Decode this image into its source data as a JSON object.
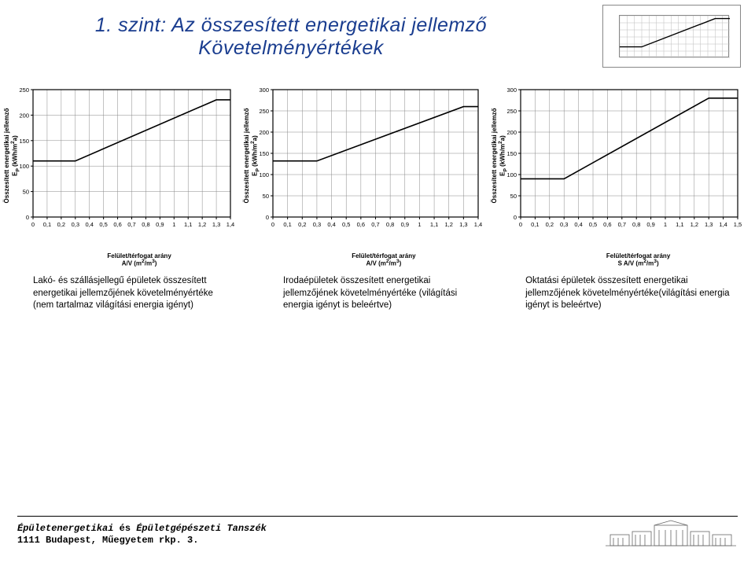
{
  "title": {
    "line1": "1. szint: Az összesített energetikai jellemző",
    "line2": "Követelményértékek"
  },
  "thumb": {
    "type": "line",
    "xlim": [
      0,
      1.5
    ],
    "ylim": [
      0,
      300
    ],
    "line": [
      [
        0,
        80
      ],
      [
        0.3,
        80
      ],
      [
        1.3,
        280
      ],
      [
        1.5,
        280
      ]
    ],
    "grid_xticks": 15,
    "background": "#ffffff",
    "line_color": "#000000",
    "grid_color": "#bdbdbd"
  },
  "charts": [
    {
      "type": "line",
      "ylabel": "Összesített energetikai jellemző\nE_P (kWh/m²a)",
      "xlabel1": "Felület/térfogat arány",
      "xlabel2": "A/V (m²/m³)",
      "xlim": [
        0,
        1.4
      ],
      "ylim": [
        0,
        250
      ],
      "xticks": [
        0,
        0.1,
        0.2,
        0.3,
        0.4,
        0.5,
        0.6,
        0.7,
        0.8,
        0.9,
        1,
        1.1,
        1.2,
        1.3,
        1.4
      ],
      "yticks": [
        0,
        50,
        100,
        150,
        200,
        250
      ],
      "xtick_labels": [
        "0",
        "0,1",
        "0,2",
        "0,3",
        "0,4",
        "0,5",
        "0,6",
        "0,7",
        "0,8",
        "0,9",
        "1",
        "1,1",
        "1,2",
        "1,3",
        "1,4"
      ],
      "ytick_labels": [
        "0",
        "50",
        "100",
        "150",
        "200",
        "250"
      ],
      "line": [
        [
          0,
          110
        ],
        [
          0.3,
          110
        ],
        [
          1.3,
          230
        ],
        [
          1.4,
          230
        ]
      ],
      "line_color": "#000000",
      "grid_color": "#888888",
      "background": "#ffffff",
      "line_width": 1.6
    },
    {
      "type": "line",
      "ylabel": "Összesített energetikai jellemző\nE_P (kWh/m²a)",
      "xlabel1": "Felület/térfogat arány",
      "xlabel2": "A/V (m²/m³)",
      "xlim": [
        0,
        1.4
      ],
      "ylim": [
        0,
        300
      ],
      "xticks": [
        0,
        0.1,
        0.2,
        0.3,
        0.4,
        0.5,
        0.6,
        0.7,
        0.8,
        0.9,
        1,
        1.1,
        1.2,
        1.3,
        1.4
      ],
      "yticks": [
        0,
        50,
        100,
        150,
        200,
        250,
        300
      ],
      "xtick_labels": [
        "0",
        "0,1",
        "0,2",
        "0,3",
        "0,4",
        "0,5",
        "0,6",
        "0,7",
        "0,8",
        "0,9",
        "1",
        "1,1",
        "1,2",
        "1,3",
        "1,4"
      ],
      "ytick_labels": [
        "0",
        "50",
        "100",
        "150",
        "200",
        "250",
        "300"
      ],
      "line": [
        [
          0,
          132
        ],
        [
          0.3,
          132
        ],
        [
          1.3,
          260
        ],
        [
          1.4,
          260
        ]
      ],
      "line_color": "#000000",
      "grid_color": "#888888",
      "background": "#ffffff",
      "line_width": 1.6
    },
    {
      "type": "line",
      "ylabel": "Összesített energetikai jellemző\nE_P (kWh/m²a)",
      "xlabel1": "Felület/térfogat arány",
      "xlabel2": "S A/V (m²/m³)",
      "xlim": [
        0,
        1.5
      ],
      "ylim": [
        0,
        300
      ],
      "xticks": [
        0,
        0.1,
        0.2,
        0.3,
        0.4,
        0.5,
        0.6,
        0.7,
        0.8,
        0.9,
        1,
        1.1,
        1.2,
        1.3,
        1.4,
        1.5
      ],
      "yticks": [
        0,
        50,
        100,
        150,
        200,
        250,
        300
      ],
      "xtick_labels": [
        "0",
        "0,1",
        "0,2",
        "0,3",
        "0,4",
        "0,5",
        "0,6",
        "0,7",
        "0,8",
        "0,9",
        "1",
        "1,1",
        "1,2",
        "1,3",
        "1,4",
        "1,5"
      ],
      "ytick_labels": [
        "0",
        "50",
        "100",
        "150",
        "200",
        "250",
        "300"
      ],
      "line": [
        [
          0,
          90
        ],
        [
          0.3,
          90
        ],
        [
          1.3,
          280
        ],
        [
          1.5,
          280
        ]
      ],
      "line_color": "#000000",
      "grid_color": "#888888",
      "background": "#ffffff",
      "line_width": 1.6
    }
  ],
  "captions": [
    "Lakó- és szállásjellegű épületek összesített energetikai jellemzőjének követelményértéke (nem tartalmaz világítási energia igényt)",
    "Irodaépületek összesített energetikai jellemzőjének követelményértéke (világítási energia igényt is beleértve)",
    "Oktatási épületek összesített energetikai jellemzőjének követelményértéke(világítási energia igényt is beleértve)"
  ],
  "footer": {
    "line1_a": "Épületenergetikai ",
    "line1_b": "és ",
    "line1_c": "Épületgépészeti Tanszék",
    "line2": "1111 Budapest, Műegyetem rkp. 3."
  }
}
